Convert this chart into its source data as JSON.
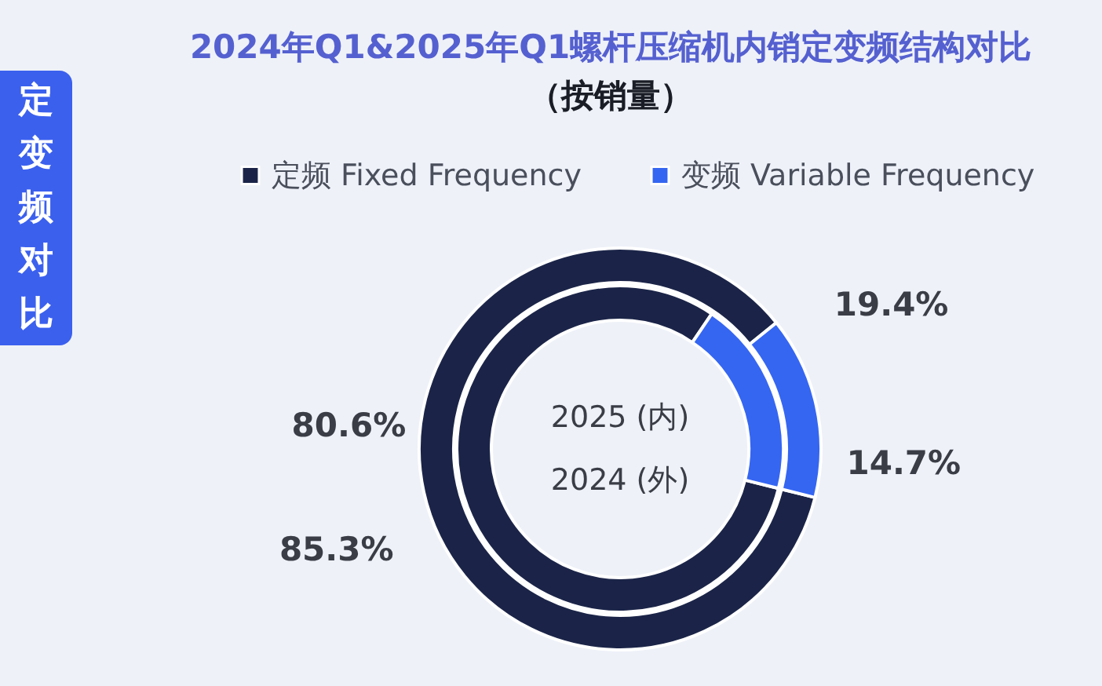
{
  "chart_data": {
    "type": "donut",
    "title": "2024年Q1&2025年Q1螺杆压缩机内销定变频结构对比",
    "subtitle": "（按销量）",
    "categories": [
      "定频 Fixed Frequency",
      "变频 Variable Frequency"
    ],
    "colors": [
      "#1b2448",
      "#3566f2"
    ],
    "series": [
      {
        "values": [
          80.6,
          19.4
        ],
        "value_labels": [
          "80.6%",
          "19.4%"
        ]
      },
      {
        "values": [
          85.3,
          14.7
        ],
        "value_labels": [
          "85.3%",
          "14.7%"
        ]
      }
    ],
    "annotations": [
      "定变频对比",
      "2025 (内)",
      "2024 (外)"
    ],
    "legend": "top"
  }
}
